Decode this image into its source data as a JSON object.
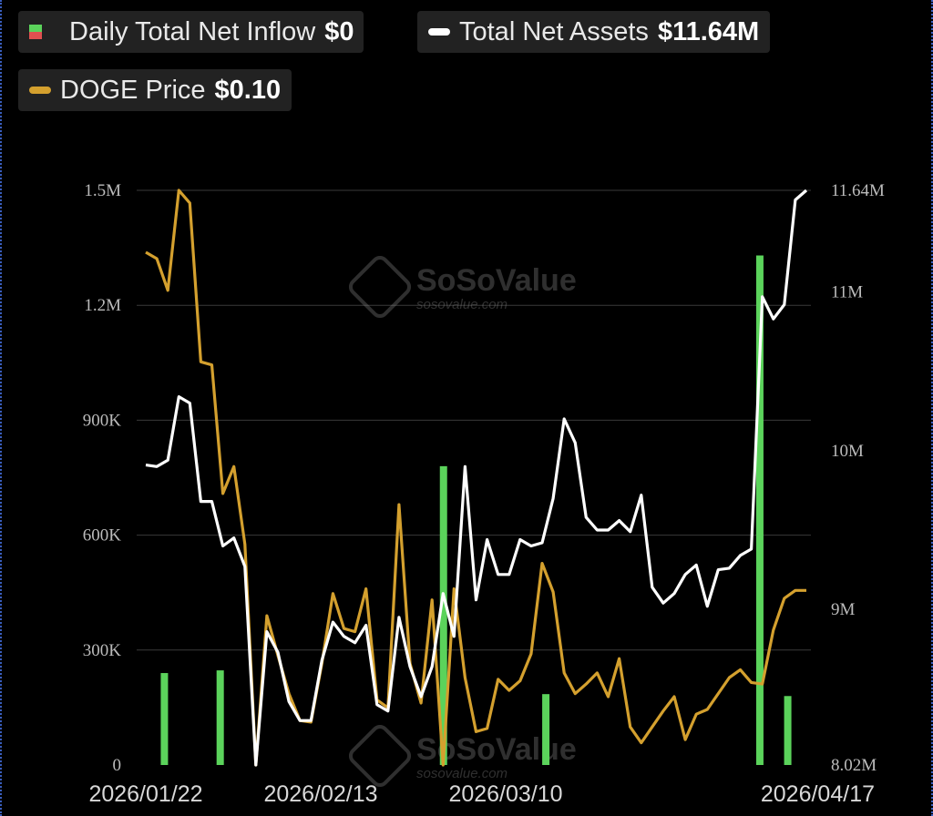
{
  "legend": {
    "inflow_label": "Daily Total Net Inflow",
    "inflow_value": "$0",
    "assets_label": "Total Net Assets",
    "assets_value": "$11.64M",
    "price_label": "DOGE Price",
    "price_value": "$0.10"
  },
  "watermark": {
    "brand": "SoSoValue",
    "url": "sosovalue.com"
  },
  "colors": {
    "inflow_positive": "#5bd35b",
    "inflow_negative": "#e05050",
    "assets_line": "#ffffff",
    "price_line": "#d4a02e",
    "grid": "#3a3a3a",
    "axis_text": "#bbbbbb"
  },
  "chart_data": {
    "type": "bar+line",
    "grid": true,
    "legend_position": "top-left",
    "x_tick_labels": [
      "2026/01/22",
      "2026/02/13",
      "2026/03/10",
      "2026/04/17"
    ],
    "left_axis": {
      "ticks": [
        0,
        300000,
        600000,
        900000,
        1200000,
        1500000
      ],
      "tick_labels": [
        "0",
        "300K",
        "600K",
        "900K",
        "1.2M",
        "1.5M"
      ],
      "range": [
        0,
        1500000
      ]
    },
    "right_axis": {
      "ticks": [
        8020000,
        9000000,
        10000000,
        11000000,
        11640000
      ],
      "tick_labels": [
        "8.02M",
        "9M",
        "10M",
        "11M",
        "11.64M"
      ],
      "range": [
        8020000,
        11640000
      ]
    },
    "n_points": 61,
    "series": [
      {
        "name": "Daily Total Net Inflow",
        "type": "bar",
        "axis": "left",
        "points": [
          [
            2,
            240000
          ],
          [
            8,
            247000
          ],
          [
            32,
            780000
          ],
          [
            43,
            185000
          ],
          [
            66,
            1330000
          ],
          [
            69,
            180000
          ]
        ]
      },
      {
        "name": "Total Net Assets",
        "type": "line",
        "axis": "right",
        "values": [
          9.91,
          9.9,
          9.94,
          10.34,
          10.3,
          9.68,
          9.68,
          9.4,
          9.45,
          9.27,
          8.02,
          8.86,
          8.73,
          8.42,
          8.3,
          8.3,
          8.68,
          8.92,
          8.83,
          8.79,
          8.9,
          8.4,
          8.36,
          8.95,
          8.64,
          8.45,
          8.64,
          9.1,
          8.83,
          9.9,
          9.06,
          9.44,
          9.22,
          9.22,
          9.44,
          9.4,
          9.42,
          9.7,
          10.2,
          10.05,
          9.58,
          9.5,
          9.5,
          9.56,
          9.49,
          9.72,
          9.14,
          9.04,
          9.1,
          9.22,
          9.28,
          9.02,
          9.25,
          9.26,
          9.34,
          9.38,
          10.97,
          10.83,
          10.92,
          11.58,
          11.64
        ]
      },
      {
        "name": "DOGE Price",
        "type": "line",
        "axis": "right_price",
        "values": [
          11.25,
          11.21,
          11.01,
          11.64,
          11.56,
          10.56,
          10.54,
          9.73,
          9.9,
          9.41,
          8.02,
          8.96,
          8.71,
          8.47,
          8.3,
          8.29,
          8.66,
          9.1,
          8.88,
          8.86,
          9.13,
          8.43,
          8.38,
          9.66,
          8.66,
          8.41,
          9.06,
          8.02,
          9.13,
          8.57,
          8.23,
          8.25,
          8.56,
          8.49,
          8.55,
          8.72,
          9.29,
          9.11,
          8.6,
          8.47,
          8.53,
          8.6,
          8.45,
          8.69,
          8.26,
          8.16,
          8.26,
          8.36,
          8.45,
          8.18,
          8.34,
          8.37,
          8.47,
          8.57,
          8.62,
          8.54,
          8.53,
          8.87,
          9.07,
          9.12,
          9.12
        ]
      }
    ]
  }
}
